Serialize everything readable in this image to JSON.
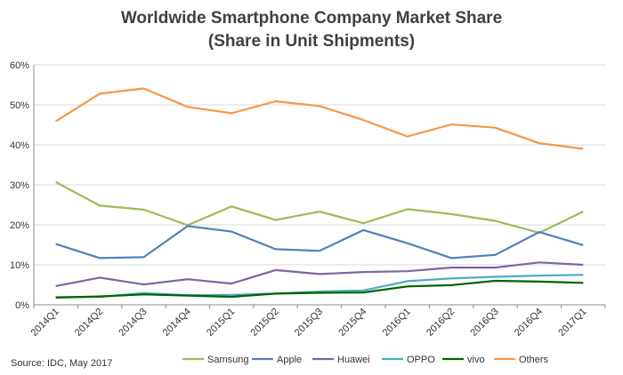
{
  "chart_data": {
    "type": "line",
    "title_line1": "Worldwide Smartphone Company Market Share",
    "title_line2": "(Share in Unit Shipments)",
    "xlabel": "",
    "ylabel": "",
    "ylim": [
      0,
      60
    ],
    "yticks": [
      "0%",
      "10%",
      "20%",
      "30%",
      "40%",
      "50%",
      "60%"
    ],
    "grid": true,
    "legend_position": "bottom",
    "categories": [
      "2014Q1",
      "2014Q2",
      "2014Q3",
      "2014Q4",
      "2015Q1",
      "2015Q2",
      "2015Q3",
      "2015Q4",
      "2016Q1",
      "2016Q2",
      "2016Q3",
      "2016Q4",
      "2017Q1"
    ],
    "series": [
      {
        "name": "Samsung",
        "color": "#9bbb59",
        "values": [
          30.7,
          24.8,
          23.8,
          19.9,
          24.6,
          21.2,
          23.3,
          20.4,
          23.9,
          22.7,
          21.0,
          18.0,
          23.3
        ]
      },
      {
        "name": "Apple",
        "color": "#4f81bd",
        "values": [
          15.2,
          11.7,
          11.9,
          19.7,
          18.3,
          13.9,
          13.5,
          18.7,
          15.4,
          11.7,
          12.5,
          18.2,
          14.9
        ]
      },
      {
        "name": "Huawei",
        "color": "#8064a2",
        "values": [
          4.7,
          6.8,
          5.1,
          6.4,
          5.3,
          8.7,
          7.7,
          8.2,
          8.4,
          9.3,
          9.3,
          10.6,
          10.0
        ]
      },
      {
        "name": "OPPO",
        "color": "#4bacc6",
        "values": [
          1.9,
          2.0,
          2.9,
          2.4,
          2.5,
          2.8,
          3.3,
          3.6,
          5.9,
          6.6,
          7.0,
          7.3,
          7.5
        ]
      },
      {
        "name": "vivo",
        "color": "#006400",
        "values": [
          1.8,
          2.1,
          2.6,
          2.3,
          2.0,
          2.8,
          3.0,
          3.1,
          4.6,
          4.9,
          6.0,
          5.8,
          5.5
        ]
      },
      {
        "name": "Others",
        "color": "#f79646",
        "values": [
          45.9,
          52.8,
          54.1,
          49.5,
          47.9,
          50.9,
          49.7,
          46.2,
          42.1,
          45.1,
          44.3,
          40.4,
          39.0
        ]
      }
    ],
    "source": "Source: IDC, May 2017"
  }
}
